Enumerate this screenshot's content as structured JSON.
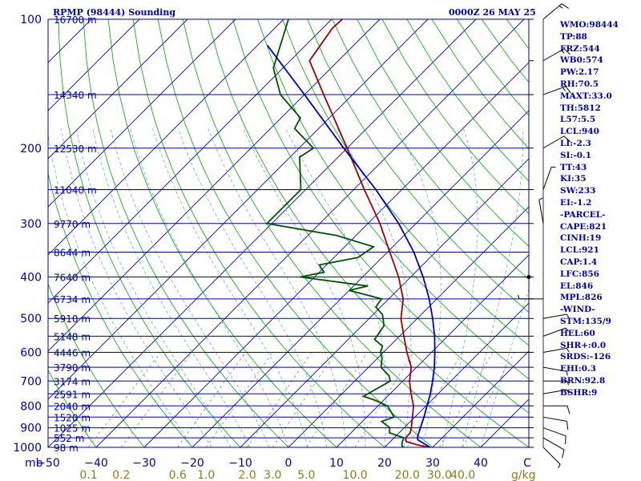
{
  "header": {
    "station": "RPMP (98444) Sounding",
    "datetime": "0000Z 26 MAY 25"
  },
  "stats": [
    "WMO:98444",
    "TP:88",
    "FRZ:544",
    "WB0:574",
    "PW:2.17",
    "RH:70.5",
    "MAXT:33.0",
    "TH:5812",
    "L57:5.5",
    "LCL:940",
    "LI:-2.3",
    "SI:-0.1",
    "TT:43",
    "KI:35",
    "SW:233",
    "EI:-1.2",
    "-PARCEL-",
    "CAPE:821",
    "CINH:19",
    "LCL:921",
    "CAP:1.4",
    "LFC:856",
    "EL:846",
    "MPL:826",
    "-WIND-",
    "STM:135/9",
    "HEL:60",
    "SHR+:0.0",
    "SRDS:-126",
    "EHI:0.3",
    "BRN:92.8",
    "BSHR:9"
  ],
  "colors": {
    "isobar": "#0000a0",
    "isotherm": "#0000a0",
    "dry_adiabat": "#00a000",
    "moist_adiabat": "#6aa8d8",
    "mixing_ratio": "#808080",
    "temperature": "#a00000",
    "dewpoint": "#005000",
    "parcel": "#0000b0",
    "labels": "#0000a0",
    "mr_labels": "#8a7a1e"
  },
  "chart_data": {
    "type": "line",
    "title": "RPMP (98444) Sounding",
    "diagram": "skew-T log-P",
    "xlabel": "C",
    "ylabel": "mb",
    "pressure_range_mb": [
      1000,
      100
    ],
    "temperature_range_c": [
      -50,
      50
    ],
    "pressure_ticks": [
      {
        "p": 100,
        "label": "100",
        "height": "16700 m"
      },
      {
        "p": 150,
        "label": "",
        "height": "14340 m"
      },
      {
        "p": 200,
        "label": "200",
        "height": "12530 m"
      },
      {
        "p": 250,
        "label": "",
        "height": "11040 m"
      },
      {
        "p": 300,
        "label": "300",
        "height": "9770 m"
      },
      {
        "p": 350,
        "label": "",
        "height": "8644 m"
      },
      {
        "p": 400,
        "label": "400",
        "height": "7640 m"
      },
      {
        "p": 450,
        "label": "",
        "height": "6734 m"
      },
      {
        "p": 500,
        "label": "500",
        "height": "5910 m"
      },
      {
        "p": 550,
        "label": "",
        "height": "5148 m"
      },
      {
        "p": 600,
        "label": "600",
        "height": "4446 m"
      },
      {
        "p": 650,
        "label": "",
        "height": "3790 m"
      },
      {
        "p": 700,
        "label": "700",
        "height": "3174 m"
      },
      {
        "p": 750,
        "label": "",
        "height": "2591 m"
      },
      {
        "p": 800,
        "label": "800",
        "height": "2040 m"
      },
      {
        "p": 850,
        "label": "",
        "height": "1520 m"
      },
      {
        "p": 900,
        "label": "900",
        "height": "1025 m"
      },
      {
        "p": 950,
        "label": "",
        "height": "552 m"
      },
      {
        "p": 1000,
        "label": "1000",
        "height": "98 m"
      }
    ],
    "temperature_ticks": [
      {
        "t": -50,
        "label": "−50"
      },
      {
        "t": -40,
        "label": "−40"
      },
      {
        "t": -30,
        "label": "−30"
      },
      {
        "t": -20,
        "label": "−20"
      },
      {
        "t": -10,
        "label": "−10"
      },
      {
        "t": 0,
        "label": "0"
      },
      {
        "t": 10,
        "label": "10"
      },
      {
        "t": 20,
        "label": "20"
      },
      {
        "t": 30,
        "label": "30"
      },
      {
        "t": 40,
        "label": "40"
      }
    ],
    "mb_label": "mb",
    "unit_label": "C",
    "mixing_ratio_labels": [
      "0.1",
      "0.2",
      "0.6",
      "1.0",
      "2.0",
      "3.0",
      "5.0",
      "10.0",
      "20.0",
      "30.0",
      "40.0"
    ],
    "mixing_ratio_unit": "g/kg",
    "mixing_ratios_gkg": [
      0.1,
      0.2,
      0.6,
      1.0,
      2.0,
      3.0,
      5.0,
      10.0,
      20.0,
      30.0,
      40.0
    ],
    "series": [
      {
        "key": "temperature",
        "points": [
          {
            "p": 1002,
            "t": 29.7
          },
          {
            "p": 990,
            "t": 27.0
          },
          {
            "p": 970,
            "t": 23.3
          },
          {
            "p": 950,
            "t": 22.4
          },
          {
            "p": 925,
            "t": 22.3
          },
          {
            "p": 900,
            "t": 21.5
          },
          {
            "p": 850,
            "t": 19.5
          },
          {
            "p": 800,
            "t": 17.4
          },
          {
            "p": 750,
            "t": 14.4
          },
          {
            "p": 700,
            "t": 11.4
          },
          {
            "p": 650,
            "t": 8.9
          },
          {
            "p": 600,
            "t": 4.9
          },
          {
            "p": 550,
            "t": 0.9
          },
          {
            "p": 500,
            "t": -3.4
          },
          {
            "p": 450,
            "t": -7.0
          },
          {
            "p": 400,
            "t": -12.5
          },
          {
            "p": 350,
            "t": -19.5
          },
          {
            "p": 300,
            "t": -27.5
          },
          {
            "p": 250,
            "t": -37.8
          },
          {
            "p": 200,
            "t": -50.0
          },
          {
            "p": 150,
            "t": -66.0
          },
          {
            "p": 125,
            "t": -76.0
          },
          {
            "p": 105,
            "t": -78.0
          },
          {
            "p": 100,
            "t": -77.8
          }
        ]
      },
      {
        "key": "dewpoint",
        "points": [
          {
            "p": 1002,
            "t": 24.0
          },
          {
            "p": 990,
            "t": 23.2
          },
          {
            "p": 970,
            "t": 22.5
          },
          {
            "p": 950,
            "t": 22.0
          },
          {
            "p": 925,
            "t": 18.0
          },
          {
            "p": 900,
            "t": 17.0
          },
          {
            "p": 870,
            "t": 14.0
          },
          {
            "p": 850,
            "t": 15.7
          },
          {
            "p": 800,
            "t": 12.0
          },
          {
            "p": 775,
            "t": 8.0
          },
          {
            "p": 760,
            "t": 5.0
          },
          {
            "p": 700,
            "t": 7.4
          },
          {
            "p": 680,
            "t": 6.0
          },
          {
            "p": 650,
            "t": 2.6
          },
          {
            "p": 620,
            "t": 1.0
          },
          {
            "p": 600,
            "t": -0.6
          },
          {
            "p": 580,
            "t": -1.5
          },
          {
            "p": 560,
            "t": -4.5
          },
          {
            "p": 520,
            "t": -5.4
          },
          {
            "p": 490,
            "t": -8.0
          },
          {
            "p": 470,
            "t": -11.0
          },
          {
            "p": 450,
            "t": -11.5
          },
          {
            "p": 430,
            "t": -20.0
          },
          {
            "p": 420,
            "t": -17.0
          },
          {
            "p": 400,
            "t": -33.0
          },
          {
            "p": 390,
            "t": -29.0
          },
          {
            "p": 375,
            "t": -31.5
          },
          {
            "p": 360,
            "t": -25.0
          },
          {
            "p": 340,
            "t": -24.0
          },
          {
            "p": 320,
            "t": -34.0
          },
          {
            "p": 300,
            "t": -51.0
          },
          {
            "p": 250,
            "t": -51.0
          },
          {
            "p": 210,
            "t": -58.0
          },
          {
            "p": 200,
            "t": -57.0
          },
          {
            "p": 180,
            "t": -65.0
          },
          {
            "p": 170,
            "t": -66.0
          },
          {
            "p": 150,
            "t": -75.0
          },
          {
            "p": 130,
            "t": -82.0
          },
          {
            "p": 100,
            "t": -89.0
          }
        ]
      },
      {
        "key": "parcel",
        "points": [
          {
            "p": 1002,
            "t": 29.7
          },
          {
            "p": 960,
            "t": 25.3
          },
          {
            "p": 940,
            "t": 24.5
          },
          {
            "p": 900,
            "t": 23.4
          },
          {
            "p": 850,
            "t": 21.9
          },
          {
            "p": 800,
            "t": 20.2
          },
          {
            "p": 750,
            "t": 18.4
          },
          {
            "p": 700,
            "t": 16.2
          },
          {
            "p": 650,
            "t": 13.7
          },
          {
            "p": 600,
            "t": 10.7
          },
          {
            "p": 550,
            "t": 7.3
          },
          {
            "p": 500,
            "t": 3.2
          },
          {
            "p": 450,
            "t": -1.6
          },
          {
            "p": 400,
            "t": -7.4
          },
          {
            "p": 350,
            "t": -14.5
          },
          {
            "p": 300,
            "t": -23.6
          },
          {
            "p": 250,
            "t": -35.4
          },
          {
            "p": 200,
            "t": -50.7
          },
          {
            "p": 150,
            "t": -70.0
          },
          {
            "p": 115,
            "t": -88.0
          }
        ]
      }
    ],
    "wind_barbs": [
      {
        "p": 1000,
        "dir": 135,
        "spd": 5
      },
      {
        "p": 950,
        "dir": 120,
        "spd": 10
      },
      {
        "p": 900,
        "dir": 110,
        "spd": 10
      },
      {
        "p": 850,
        "dir": 100,
        "spd": 10
      },
      {
        "p": 800,
        "dir": 90,
        "spd": 10
      },
      {
        "p": 750,
        "dir": 80,
        "spd": 5
      },
      {
        "p": 700,
        "dir": 90,
        "spd": 5
      },
      {
        "p": 650,
        "dir": 100,
        "spd": 5
      },
      {
        "p": 600,
        "dir": 80,
        "spd": 5
      },
      {
        "p": 550,
        "dir": 70,
        "spd": 5
      },
      {
        "p": 500,
        "dir": 80,
        "spd": 5
      },
      {
        "p": 450,
        "dir": 270,
        "spd": 5
      },
      {
        "p": 400,
        "dir": 0,
        "spd": 0
      },
      {
        "p": 300,
        "dir": 350,
        "spd": 5
      },
      {
        "p": 250,
        "dir": 20,
        "spd": 5
      },
      {
        "p": 200,
        "dir": 60,
        "spd": 10
      },
      {
        "p": 150,
        "dir": 70,
        "spd": 15
      },
      {
        "p": 125,
        "dir": 60,
        "spd": 15
      },
      {
        "p": 100,
        "dir": 50,
        "spd": 15
      }
    ]
  }
}
